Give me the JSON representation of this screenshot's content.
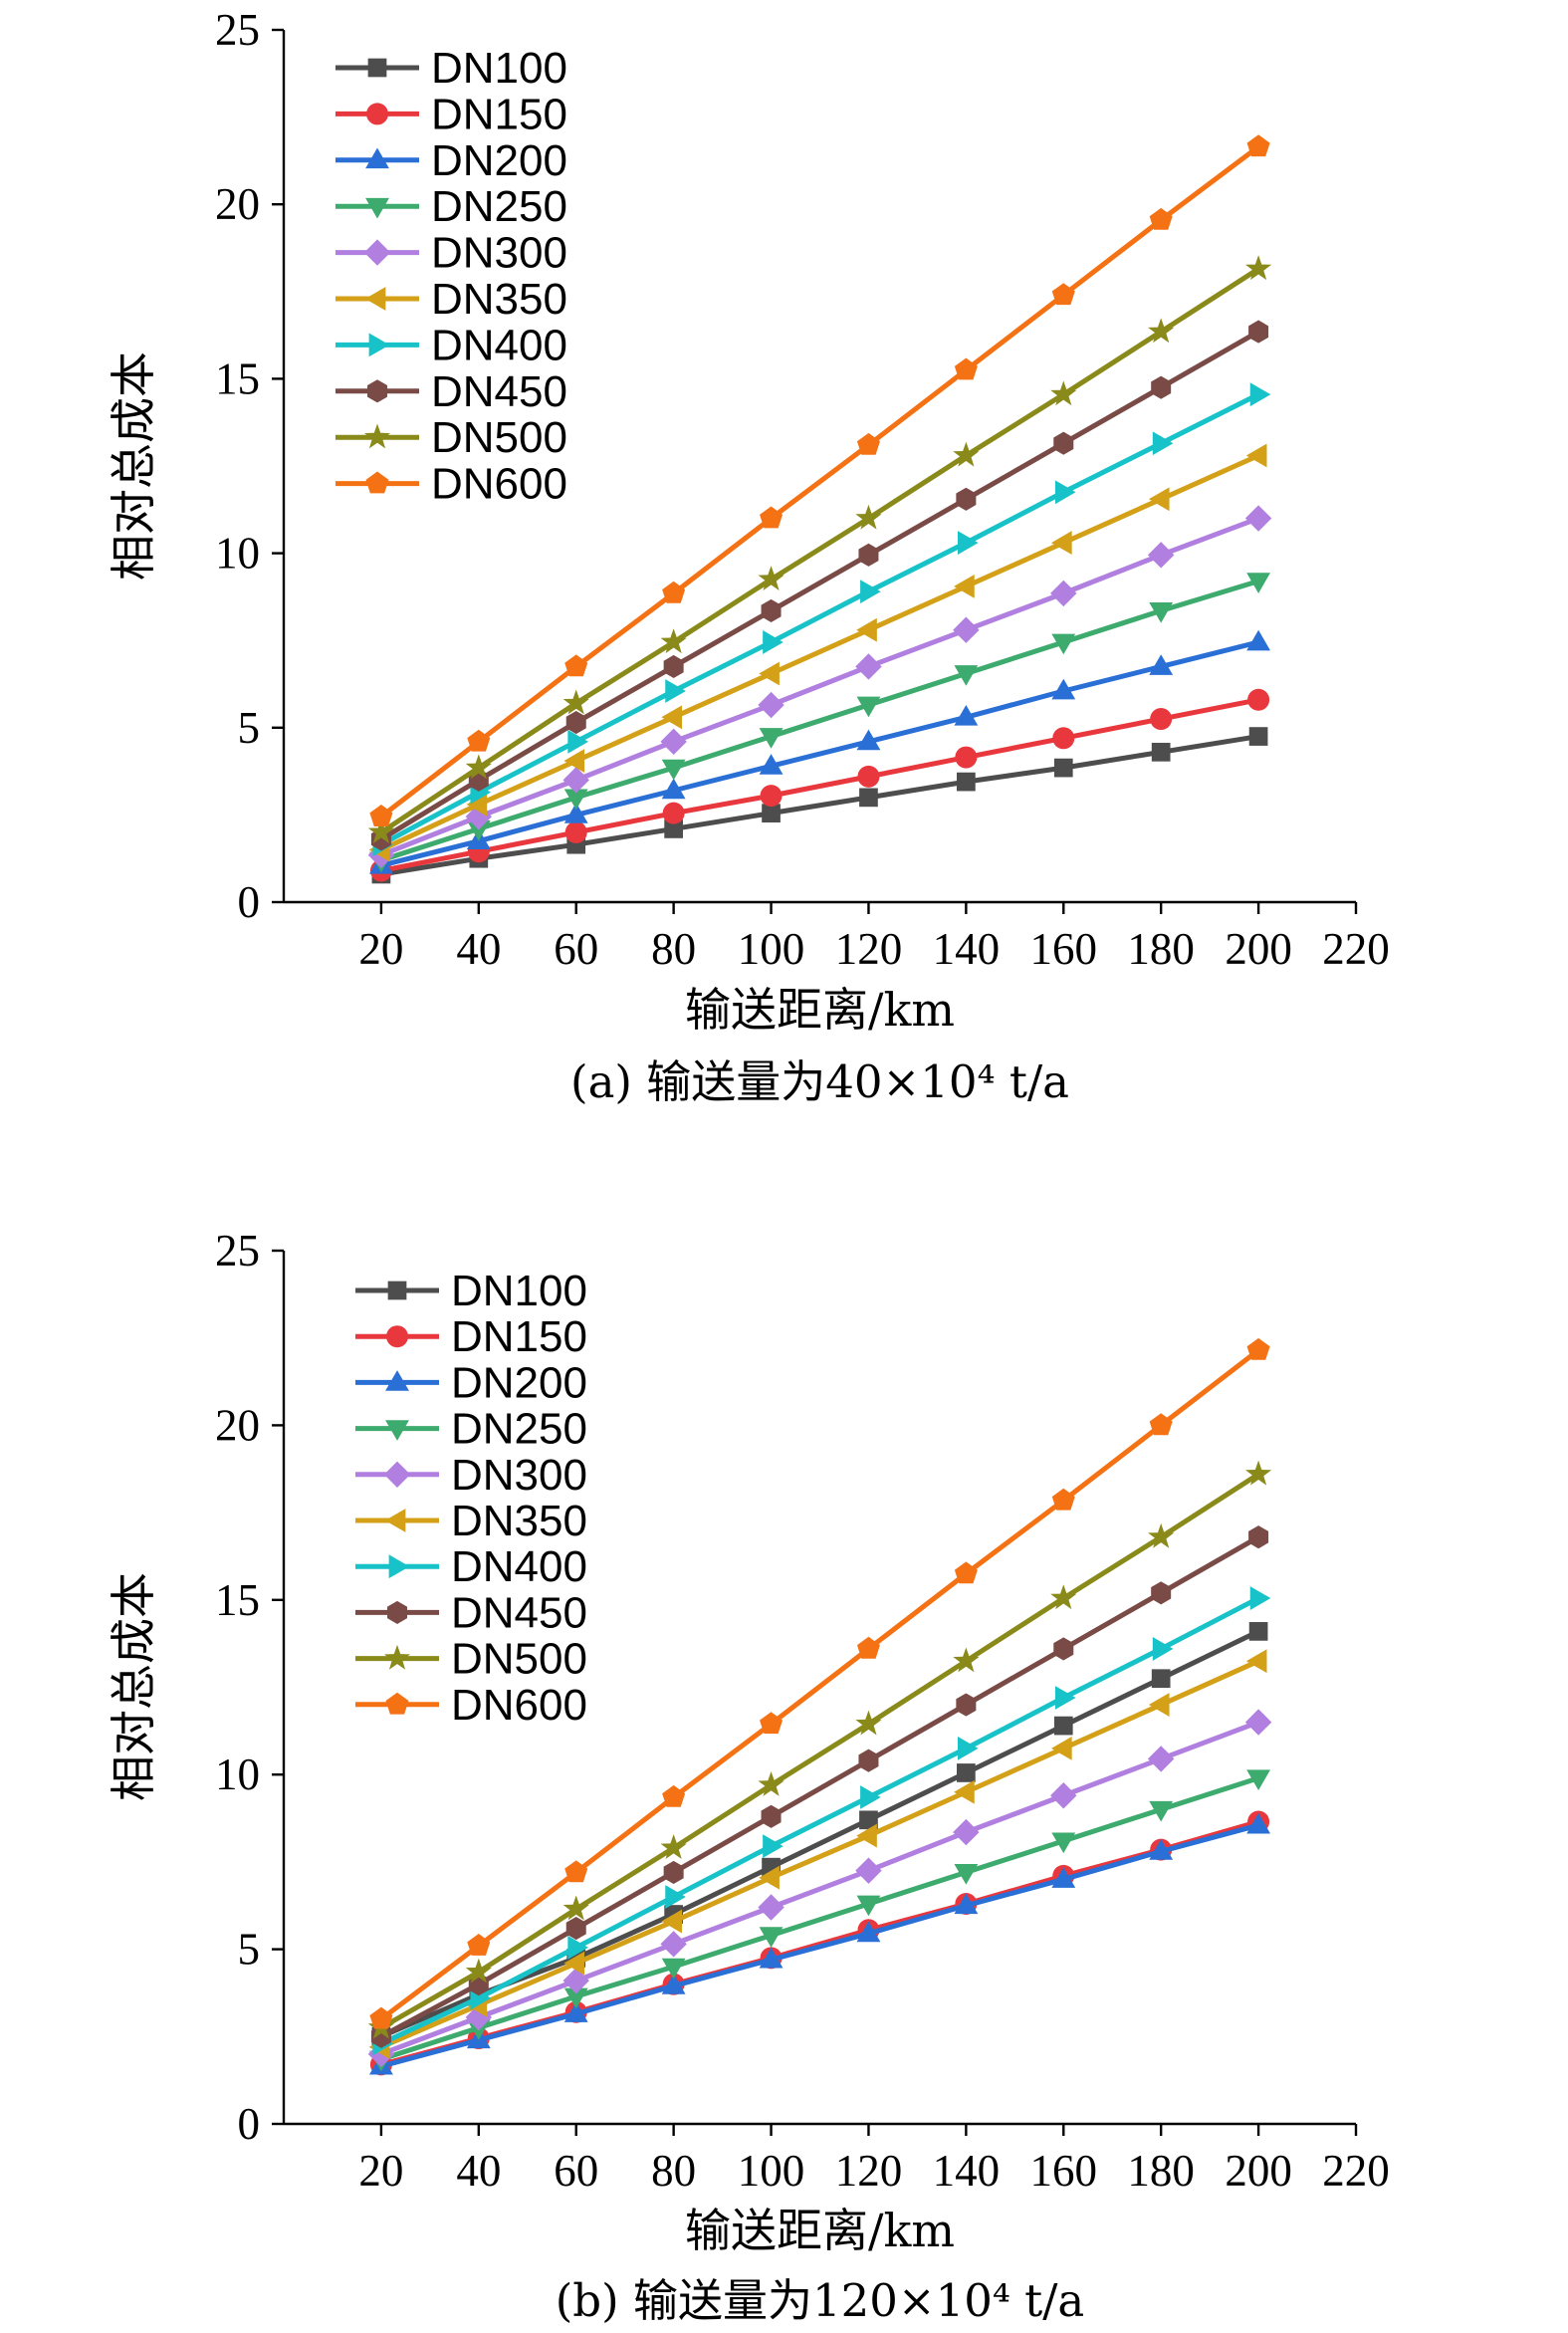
{
  "chart_data": [
    {
      "type": "line",
      "panel": "a",
      "caption": "(a) 输送量为40×10⁴ t/a",
      "xlabel": "输送距离/km",
      "ylabel": "相对总成本",
      "xlim": [
        0,
        220
      ],
      "ylim": [
        0,
        25
      ],
      "xticks": [
        20,
        40,
        60,
        80,
        100,
        120,
        140,
        160,
        180,
        200,
        220
      ],
      "yticks": [
        0,
        5,
        10,
        15,
        20,
        25
      ],
      "grid": false,
      "legend_position": "top-left",
      "x": [
        20,
        40,
        60,
        80,
        100,
        120,
        140,
        160,
        180,
        200
      ],
      "series": [
        {
          "name": "DN100",
          "color": "#4d4d4d",
          "marker": "square",
          "values": [
            0.8,
            1.25,
            1.65,
            2.1,
            2.55,
            3.0,
            3.45,
            3.85,
            4.3,
            4.75
          ]
        },
        {
          "name": "DN150",
          "color": "#e8383d",
          "marker": "circle",
          "values": [
            0.9,
            1.45,
            2.0,
            2.55,
            3.05,
            3.6,
            4.15,
            4.7,
            5.25,
            5.8
          ]
        },
        {
          "name": "DN200",
          "color": "#2a6fd6",
          "marker": "triangle-up",
          "values": [
            1.05,
            1.75,
            2.5,
            3.2,
            3.9,
            4.6,
            5.3,
            6.05,
            6.75,
            7.45
          ]
        },
        {
          "name": "DN250",
          "color": "#3daa6e",
          "marker": "triangle-down",
          "values": [
            1.2,
            2.1,
            3.0,
            3.85,
            4.75,
            5.65,
            6.55,
            7.45,
            8.35,
            9.2
          ]
        },
        {
          "name": "DN300",
          "color": "#b07fe0",
          "marker": "diamond",
          "values": [
            1.35,
            2.45,
            3.5,
            4.6,
            5.65,
            6.75,
            7.8,
            8.85,
            9.95,
            11.0
          ]
        },
        {
          "name": "DN350",
          "color": "#d4a017",
          "marker": "triangle-left",
          "values": [
            1.5,
            2.8,
            4.05,
            5.3,
            6.55,
            7.8,
            9.05,
            10.3,
            11.55,
            12.8
          ]
        },
        {
          "name": "DN400",
          "color": "#17c2c8",
          "marker": "triangle-right",
          "values": [
            1.65,
            3.15,
            4.6,
            6.05,
            7.45,
            8.9,
            10.3,
            11.75,
            13.15,
            14.55
          ]
        },
        {
          "name": "DN450",
          "color": "#7a4a46",
          "marker": "hexagon",
          "values": [
            1.8,
            3.5,
            5.15,
            6.75,
            8.35,
            9.95,
            11.55,
            13.15,
            14.75,
            16.35
          ]
        },
        {
          "name": "DN500",
          "color": "#8a8a1a",
          "marker": "star",
          "values": [
            2.0,
            3.85,
            5.7,
            7.45,
            9.25,
            11.0,
            12.8,
            14.55,
            16.35,
            18.15
          ]
        },
        {
          "name": "DN600",
          "color": "#f57214",
          "marker": "pentagon",
          "values": [
            2.45,
            4.6,
            6.75,
            8.85,
            11.0,
            13.1,
            15.25,
            17.4,
            19.55,
            21.65
          ]
        }
      ]
    },
    {
      "type": "line",
      "panel": "b",
      "caption": "(b) 输送量为120×10⁴ t/a",
      "xlabel": "输送距离/km",
      "ylabel": "相对总成本",
      "xlim": [
        0,
        220
      ],
      "ylim": [
        0,
        25
      ],
      "xticks": [
        20,
        40,
        60,
        80,
        100,
        120,
        140,
        160,
        180,
        200,
        220
      ],
      "yticks": [
        0,
        5,
        10,
        15,
        20,
        25
      ],
      "grid": false,
      "legend_position": "top-left",
      "x": [
        20,
        40,
        60,
        80,
        100,
        120,
        140,
        160,
        180,
        200
      ],
      "series": [
        {
          "name": "DN100",
          "color": "#4d4d4d",
          "marker": "square",
          "values": [
            2.5,
            3.7,
            4.75,
            6.0,
            7.35,
            8.7,
            10.05,
            11.4,
            12.75,
            14.1
          ]
        },
        {
          "name": "DN150",
          "color": "#e8383d",
          "marker": "circle",
          "values": [
            1.7,
            2.45,
            3.2,
            4.0,
            4.75,
            5.55,
            6.3,
            7.1,
            7.85,
            8.65
          ]
        },
        {
          "name": "DN200",
          "color": "#2a6fd6",
          "marker": "triangle-up",
          "values": [
            1.65,
            2.4,
            3.15,
            3.95,
            4.7,
            5.45,
            6.25,
            7.0,
            7.8,
            8.55
          ]
        },
        {
          "name": "DN250",
          "color": "#3daa6e",
          "marker": "triangle-down",
          "values": [
            1.85,
            2.75,
            3.65,
            4.5,
            5.4,
            6.3,
            7.2,
            8.1,
            9.0,
            9.9
          ]
        },
        {
          "name": "DN300",
          "color": "#b07fe0",
          "marker": "diamond",
          "values": [
            2.0,
            3.05,
            4.1,
            5.15,
            6.2,
            7.25,
            8.35,
            9.4,
            10.45,
            11.5
          ]
        },
        {
          "name": "DN350",
          "color": "#d4a017",
          "marker": "triangle-left",
          "values": [
            2.2,
            3.4,
            4.6,
            5.8,
            7.05,
            8.25,
            9.5,
            10.75,
            12.0,
            13.25
          ]
        },
        {
          "name": "DN400",
          "color": "#17c2c8",
          "marker": "triangle-right",
          "values": [
            2.3,
            3.6,
            5.05,
            6.5,
            7.95,
            9.35,
            10.75,
            12.2,
            13.6,
            15.05
          ]
        },
        {
          "name": "DN450",
          "color": "#7a4a46",
          "marker": "hexagon",
          "values": [
            2.5,
            4.0,
            5.6,
            7.2,
            8.8,
            10.4,
            12.0,
            13.6,
            15.2,
            16.8
          ]
        },
        {
          "name": "DN500",
          "color": "#8a8a1a",
          "marker": "star",
          "values": [
            2.75,
            4.35,
            6.15,
            7.9,
            9.7,
            11.45,
            13.25,
            15.05,
            16.8,
            18.6
          ]
        },
        {
          "name": "DN600",
          "color": "#f57214",
          "marker": "pentagon",
          "values": [
            3.0,
            5.1,
            7.2,
            9.35,
            11.45,
            13.6,
            15.75,
            17.85,
            20.0,
            22.15
          ]
        }
      ]
    }
  ]
}
